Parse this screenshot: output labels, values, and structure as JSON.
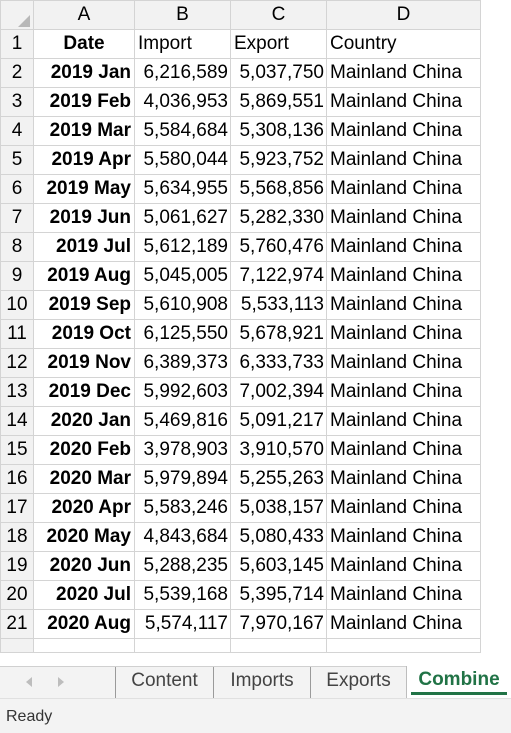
{
  "columns": [
    "A",
    "B",
    "C",
    "D"
  ],
  "header": {
    "row_num": "1",
    "date": "Date",
    "import": "Import",
    "export": "Export",
    "country": "Country"
  },
  "rows": [
    {
      "n": "2",
      "date": "2019 Jan",
      "import": "6,216,589",
      "export": "5,037,750",
      "country": "Mainland China"
    },
    {
      "n": "3",
      "date": "2019 Feb",
      "import": "4,036,953",
      "export": "5,869,551",
      "country": "Mainland China"
    },
    {
      "n": "4",
      "date": "2019 Mar",
      "import": "5,584,684",
      "export": "5,308,136",
      "country": "Mainland China"
    },
    {
      "n": "5",
      "date": "2019 Apr",
      "import": "5,580,044",
      "export": "5,923,752",
      "country": "Mainland China"
    },
    {
      "n": "6",
      "date": "2019 May",
      "import": "5,634,955",
      "export": "5,568,856",
      "country": "Mainland China"
    },
    {
      "n": "7",
      "date": "2019 Jun",
      "import": "5,061,627",
      "export": "5,282,330",
      "country": "Mainland China"
    },
    {
      "n": "8",
      "date": "2019 Jul",
      "import": "5,612,189",
      "export": "5,760,476",
      "country": "Mainland China"
    },
    {
      "n": "9",
      "date": "2019 Aug",
      "import": "5,045,005",
      "export": "7,122,974",
      "country": "Mainland China"
    },
    {
      "n": "10",
      "date": "2019 Sep",
      "import": "5,610,908",
      "export": "5,533,113",
      "country": "Mainland China"
    },
    {
      "n": "11",
      "date": "2019 Oct",
      "import": "6,125,550",
      "export": "5,678,921",
      "country": "Mainland China"
    },
    {
      "n": "12",
      "date": "2019 Nov",
      "import": "6,389,373",
      "export": "6,333,733",
      "country": "Mainland China"
    },
    {
      "n": "13",
      "date": "2019 Dec",
      "import": "5,992,603",
      "export": "7,002,394",
      "country": "Mainland China"
    },
    {
      "n": "14",
      "date": "2020 Jan",
      "import": "5,469,816",
      "export": "5,091,217",
      "country": "Mainland China"
    },
    {
      "n": "15",
      "date": "2020 Feb",
      "import": "3,978,903",
      "export": "3,910,570",
      "country": "Mainland China"
    },
    {
      "n": "16",
      "date": "2020 Mar",
      "import": "5,979,894",
      "export": "5,255,263",
      "country": "Mainland China"
    },
    {
      "n": "17",
      "date": "2020 Apr",
      "import": "5,583,246",
      "export": "5,038,157",
      "country": "Mainland China"
    },
    {
      "n": "18",
      "date": "2020 May",
      "import": "4,843,684",
      "export": "5,080,433",
      "country": "Mainland China"
    },
    {
      "n": "19",
      "date": "2020 Jun",
      "import": "5,288,235",
      "export": "5,603,145",
      "country": "Mainland China"
    },
    {
      "n": "20",
      "date": "2020 Jul",
      "import": "5,539,168",
      "export": "5,395,714",
      "country": "Mainland China"
    },
    {
      "n": "21",
      "date": "2020 Aug",
      "import": "5,574,117",
      "export": "7,970,167",
      "country": "Mainland China"
    }
  ],
  "sheet_tabs": [
    "Content",
    "Imports",
    "Exports",
    "Combine"
  ],
  "active_tab": "Combine",
  "status": "Ready"
}
